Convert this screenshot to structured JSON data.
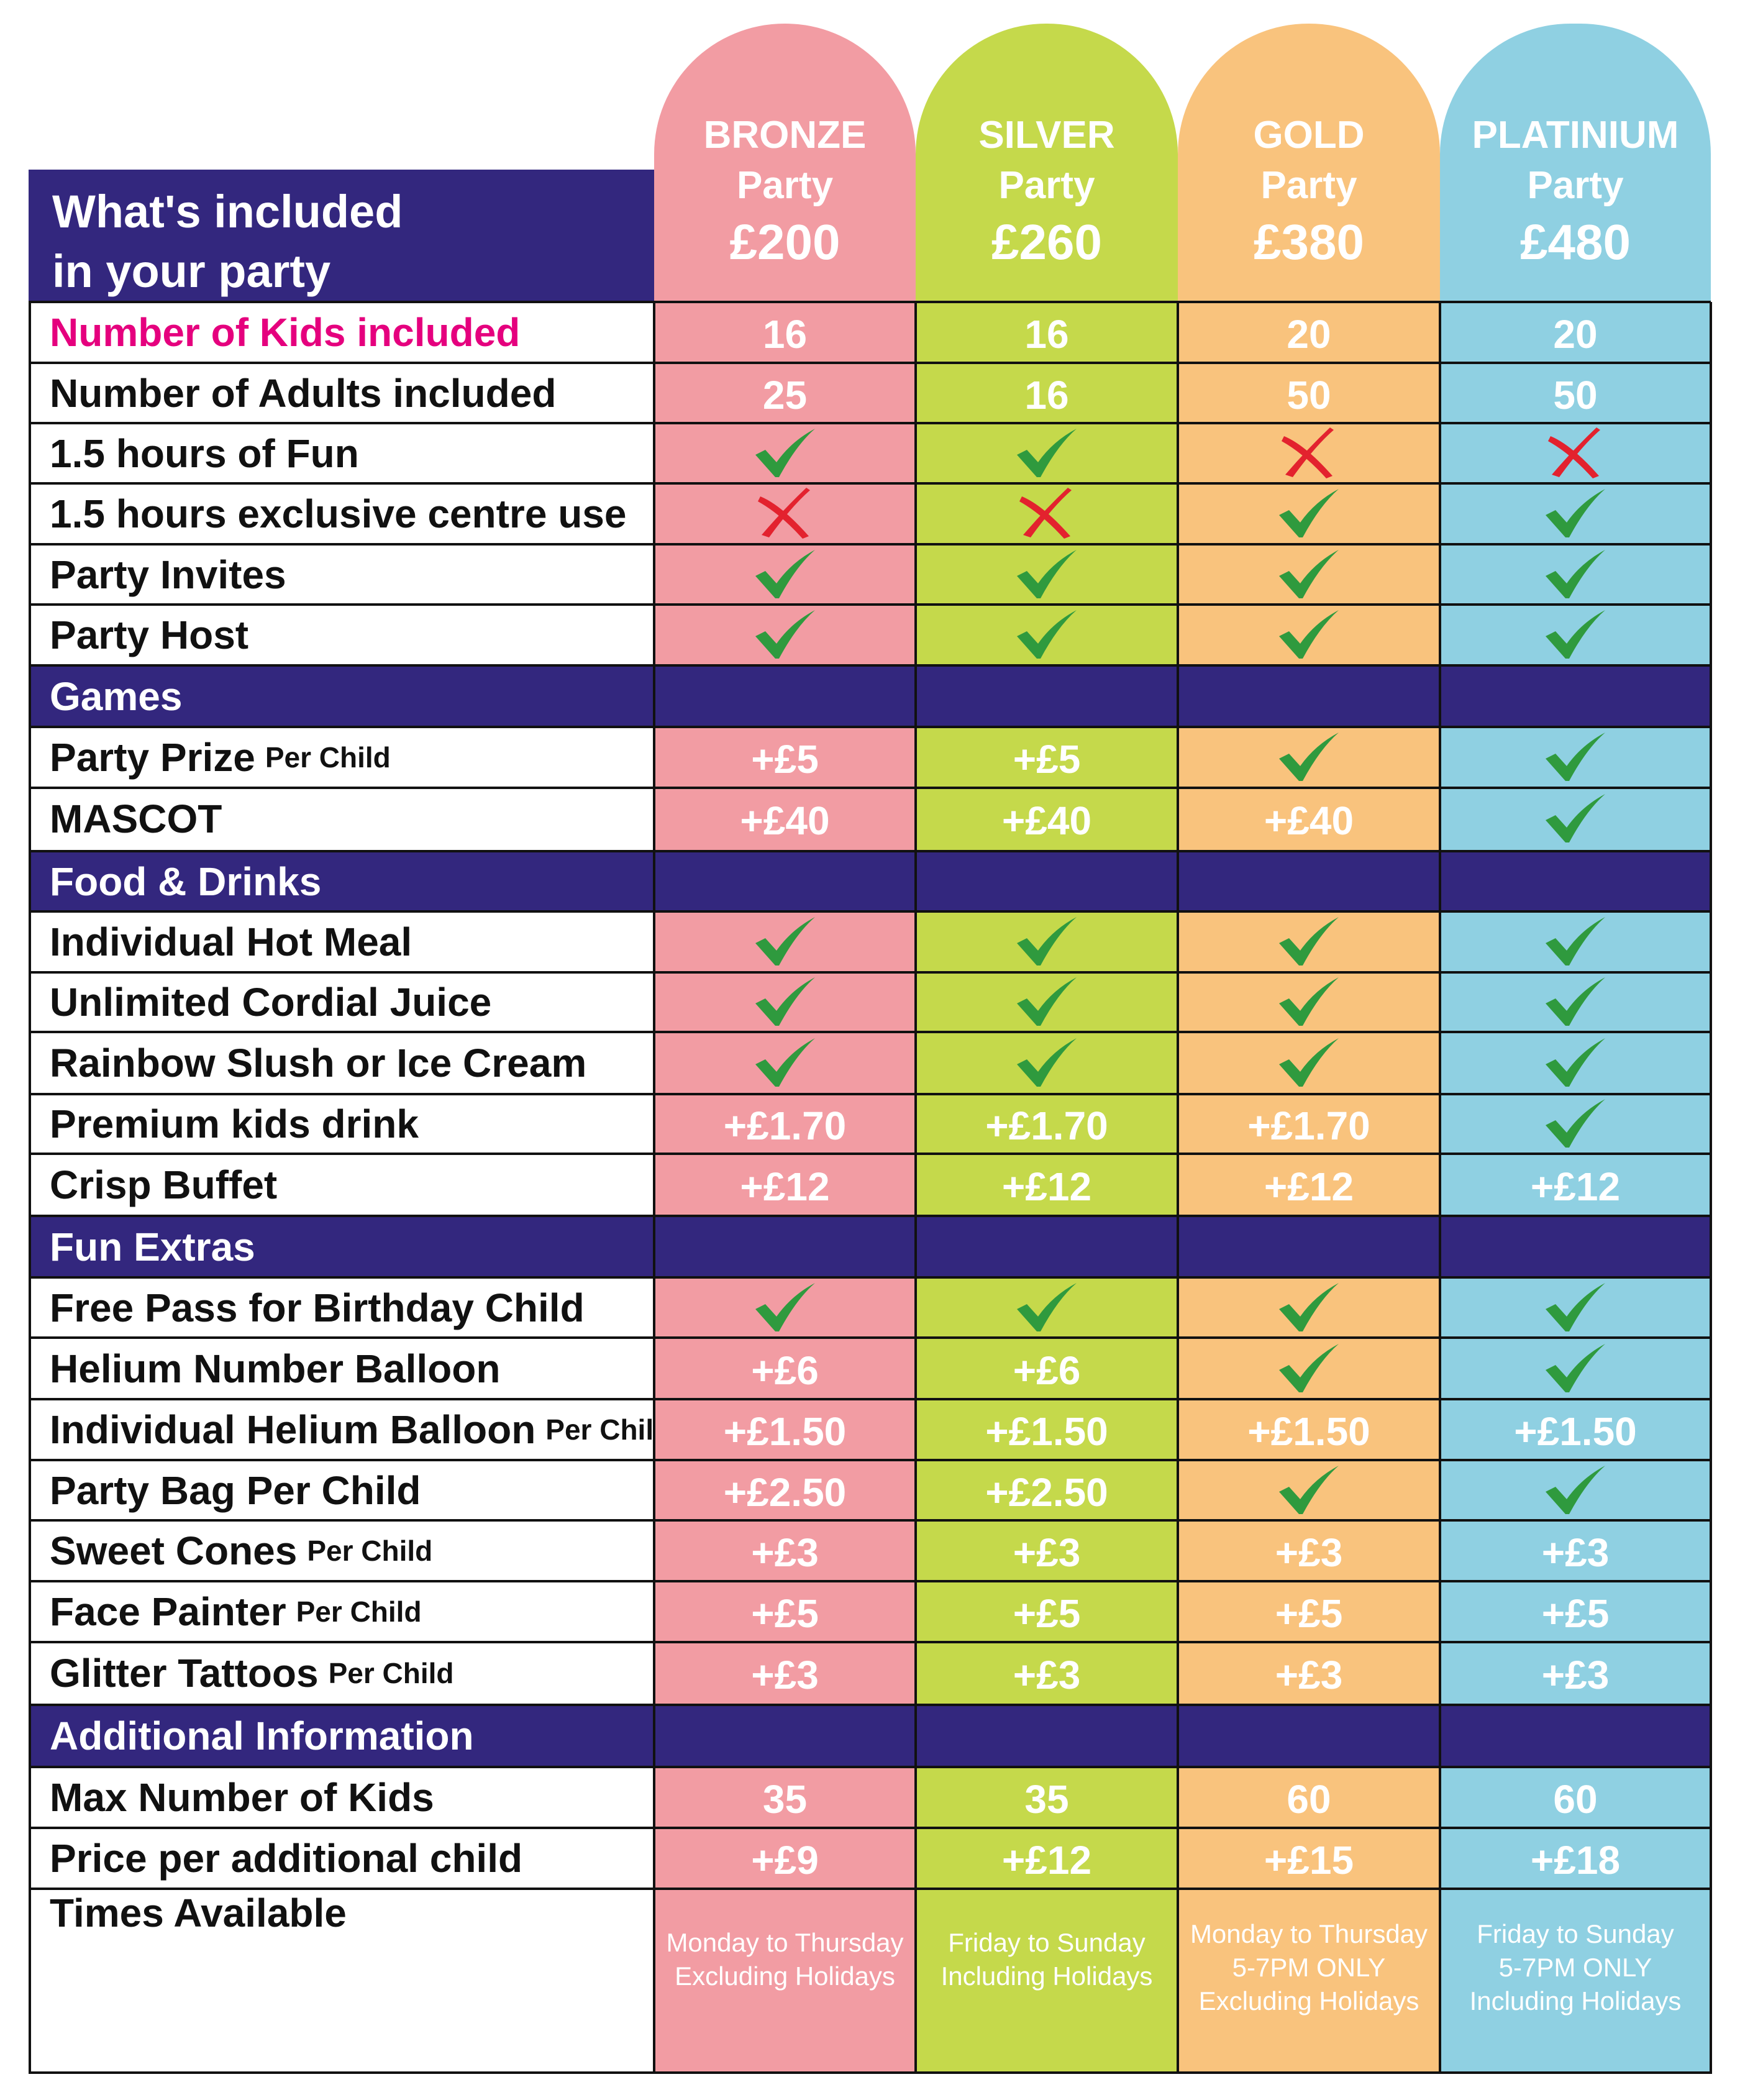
{
  "title": {
    "line1": "What's included",
    "line2": "in your party"
  },
  "packages": [
    {
      "tier": "BRONZE",
      "party": "Party",
      "price": "£200",
      "color": "#f29ca3"
    },
    {
      "tier": "SILVER",
      "party": "Party",
      "price": "£260",
      "color": "#c5d94b"
    },
    {
      "tier": "GOLD",
      "party": "Party",
      "price": "£380",
      "color": "#f9c37d"
    },
    {
      "tier": "PLATINIUM",
      "party": "Party",
      "price": "£480",
      "color": "#8fd0e2"
    }
  ],
  "colors": {
    "header_bg": "#33277e",
    "check": "#2f9a3e",
    "cross": "#e3222e",
    "kids_label": "#e5007e"
  },
  "rows": [
    {
      "type": "item",
      "label": "Number of Kids included",
      "highlight": true,
      "values": [
        "16",
        "16",
        "20",
        "20"
      ]
    },
    {
      "type": "item",
      "label": "Number of Adults included",
      "values": [
        "25",
        "16",
        "50",
        "50"
      ]
    },
    {
      "type": "item",
      "label": "1.5 hours of Fun",
      "values": [
        "check-icon",
        "check-icon",
        "cross-icon",
        "cross-icon"
      ]
    },
    {
      "type": "item",
      "label": "1.5 hours exclusive centre use",
      "values": [
        "cross-icon",
        "cross-icon",
        "check-icon",
        "check-icon"
      ]
    },
    {
      "type": "item",
      "label": "Party Invites",
      "values": [
        "check-icon",
        "check-icon",
        "check-icon",
        "check-icon"
      ]
    },
    {
      "type": "item",
      "label": "Party Host",
      "values": [
        "check-icon",
        "check-icon",
        "check-icon",
        "check-icon"
      ]
    },
    {
      "type": "section",
      "label": "Games"
    },
    {
      "type": "item",
      "label": "Party Prize",
      "suffix": "Per Child",
      "values": [
        "+£5",
        "+£5",
        "check-icon",
        "check-icon"
      ]
    },
    {
      "type": "item",
      "label": "MASCOT",
      "values": [
        "+£40",
        "+£40",
        "+£40",
        "check-icon"
      ]
    },
    {
      "type": "section",
      "label": "Food & Drinks"
    },
    {
      "type": "item",
      "label": "Individual Hot Meal",
      "values": [
        "check-icon",
        "check-icon",
        "check-icon",
        "check-icon"
      ]
    },
    {
      "type": "item",
      "label": "Unlimited Cordial Juice",
      "values": [
        "check-icon",
        "check-icon",
        "check-icon",
        "check-icon"
      ]
    },
    {
      "type": "item",
      "label": "Rainbow Slush or Ice Cream",
      "values": [
        "check-icon",
        "check-icon",
        "check-icon",
        "check-icon"
      ]
    },
    {
      "type": "item",
      "label": "Premium kids drink",
      "values": [
        "+£1.70",
        "+£1.70",
        "+£1.70",
        "check-icon"
      ]
    },
    {
      "type": "item",
      "label": "Crisp Buffet",
      "values": [
        "+£12",
        "+£12",
        "+£12",
        "+£12"
      ]
    },
    {
      "type": "section",
      "label": "Fun Extras"
    },
    {
      "type": "item",
      "label": "Free Pass for Birthday Child",
      "values": [
        "check-icon",
        "check-icon",
        "check-icon",
        "check-icon"
      ]
    },
    {
      "type": "item",
      "label": "Helium Number Balloon",
      "values": [
        "+£6",
        "+£6",
        "check-icon",
        "check-icon"
      ]
    },
    {
      "type": "item",
      "label": "Individual Helium Balloon",
      "suffix": "Per Child",
      "values": [
        "+£1.50",
        "+£1.50",
        "+£1.50",
        "+£1.50"
      ]
    },
    {
      "type": "item",
      "label": "Party Bag Per Child",
      "values": [
        "+£2.50",
        "+£2.50",
        "check-icon",
        "check-icon"
      ]
    },
    {
      "type": "item",
      "label": "Sweet Cones",
      "suffix": "Per Child",
      "values": [
        "+£3",
        "+£3",
        "+£3",
        "+£3"
      ]
    },
    {
      "type": "item",
      "label": "Face Painter",
      "suffix": "Per Child",
      "values": [
        "+£5",
        "+£5",
        "+£5",
        "+£5"
      ]
    },
    {
      "type": "item",
      "label": "Glitter Tattoos",
      "suffix": "Per Child",
      "values": [
        "+£3",
        "+£3",
        "+£3",
        "+£3"
      ]
    },
    {
      "type": "section",
      "label": "Additional Information"
    },
    {
      "type": "item",
      "label": "Max Number of Kids",
      "values": [
        "35",
        "35",
        "60",
        "60"
      ]
    },
    {
      "type": "item",
      "label": "Price per additional child",
      "values": [
        "+£9",
        "+£12",
        "+£15",
        "+£18"
      ]
    },
    {
      "type": "times",
      "label": "Times Available",
      "values": [
        [
          "Monday to Thursday",
          "Excluding Holidays"
        ],
        [
          "Friday to Sunday",
          "Including Holidays"
        ],
        [
          "Monday to Thursday",
          "5-7PM ONLY",
          "Excluding Holidays"
        ],
        [
          "Friday to Sunday",
          "5-7PM ONLY",
          "Including Holidays"
        ]
      ]
    }
  ]
}
